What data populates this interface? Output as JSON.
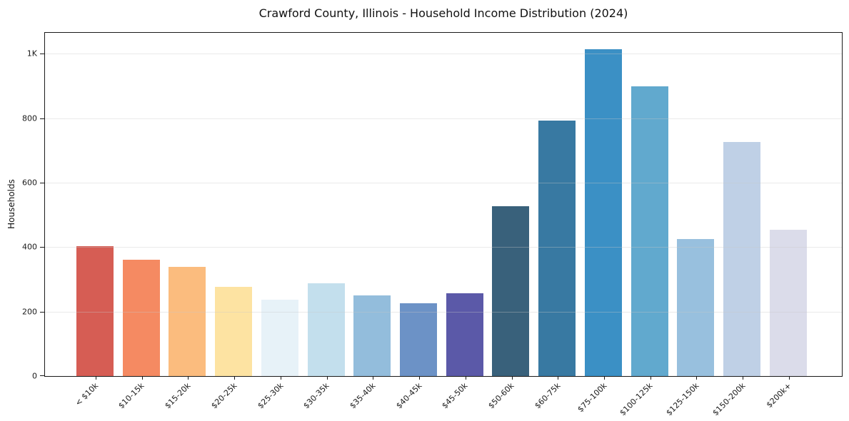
{
  "chart_data": {
    "type": "bar",
    "title": "Crawford County, Illinois - Household Income Distribution (2024)",
    "xlabel": "",
    "ylabel": "Households",
    "categories": [
      "< $10k",
      "$10-15k",
      "$15-20k",
      "$20-25k",
      "$25-30k",
      "$30-35k",
      "$35-40k",
      "$40-45k",
      "$45-50k",
      "$50-60k",
      "$60-75k",
      "$75-100k",
      "$100-125k",
      "$125-150k",
      "$150-200k",
      "$200k+"
    ],
    "values": [
      403,
      362,
      338,
      277,
      236,
      288,
      250,
      226,
      258,
      528,
      793,
      1014,
      900,
      425,
      727,
      455
    ],
    "bar_colors": [
      "#d65d54",
      "#f58a62",
      "#fbbc7e",
      "#fde3a2",
      "#e7f2f8",
      "#c3dfed",
      "#93bddc",
      "#6c92c6",
      "#5b59a8",
      "#39617b",
      "#3879a2",
      "#3b90c5",
      "#61a9ce",
      "#98c0de",
      "#bfd0e6",
      "#dbdcea"
    ],
    "ylim": [
      0,
      1065
    ],
    "yticks": [
      0,
      200,
      400,
      600,
      800,
      1000
    ],
    "ytick_labels": [
      "0",
      "200",
      "400",
      "600",
      "800",
      "1K"
    ],
    "grid": "horizontal",
    "legend_position": "none",
    "plot_border_color": "#1a1a1a",
    "background_color": "#ffffff"
  }
}
